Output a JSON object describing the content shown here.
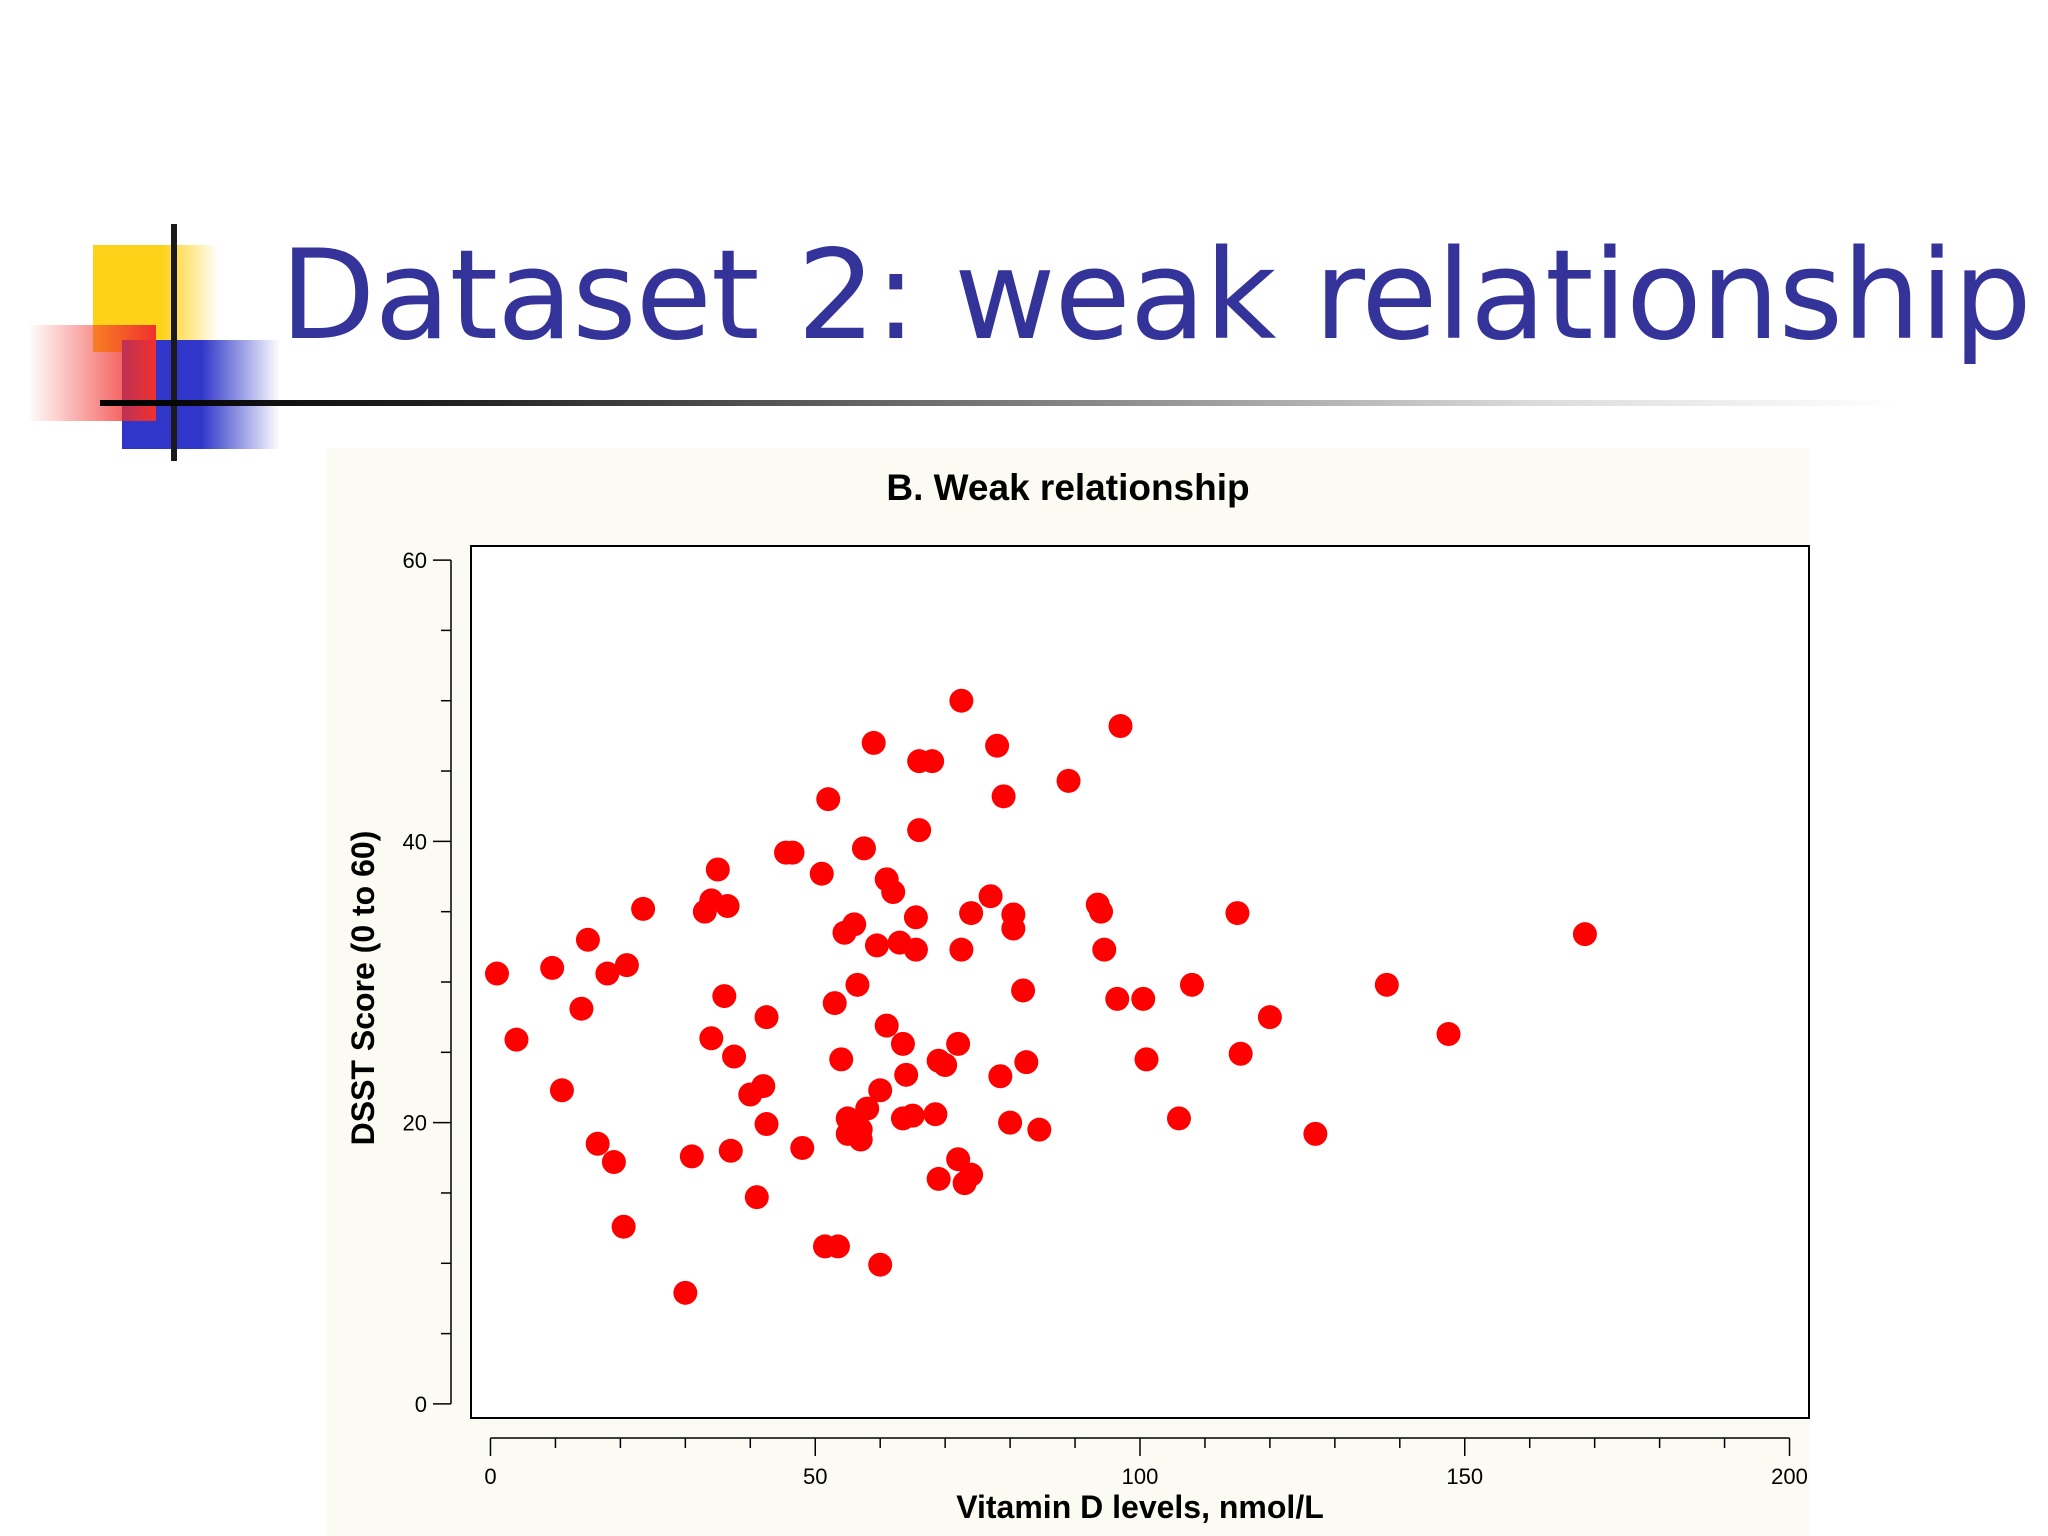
{
  "slide": {
    "title": "Dataset 2: weak relationship",
    "title_color": "#333399",
    "accent_colors": {
      "yellow": "#ffd21a",
      "blue": "#2f36c9",
      "red": "#f0302c"
    }
  },
  "chart_data": {
    "type": "scatter",
    "title": "B. Weak relationship",
    "xlabel": "Vitamin D levels, nmol/L",
    "ylabel": "DSST Score (0 to 60)",
    "xlim": [
      -3,
      203
    ],
    "ylim": [
      -1,
      61
    ],
    "xticks": [
      0,
      50,
      100,
      150,
      200
    ],
    "xminor_step": 10,
    "yticks": [
      0,
      20,
      40,
      60
    ],
    "yminor_step": 5,
    "grid": false,
    "marker_color": "#ff0000",
    "points": [
      [
        1,
        30.6
      ],
      [
        4,
        25.9
      ],
      [
        9.5,
        31
      ],
      [
        11,
        22.3
      ],
      [
        14,
        28.1
      ],
      [
        15,
        33
      ],
      [
        16.5,
        18.5
      ],
      [
        18,
        30.6
      ],
      [
        19,
        17.2
      ],
      [
        20.5,
        12.6
      ],
      [
        21,
        31.2
      ],
      [
        23.5,
        35.2
      ],
      [
        30,
        7.9
      ],
      [
        31,
        17.6
      ],
      [
        33,
        35
      ],
      [
        34,
        35.8
      ],
      [
        34,
        26
      ],
      [
        35,
        38
      ],
      [
        36,
        29
      ],
      [
        36.5,
        35.4
      ],
      [
        37,
        18
      ],
      [
        37.5,
        24.7
      ],
      [
        40,
        22
      ],
      [
        41,
        14.7
      ],
      [
        42,
        22.6
      ],
      [
        42.5,
        19.9
      ],
      [
        42.5,
        27.5
      ],
      [
        45.5,
        39.2
      ],
      [
        46.5,
        39.2
      ],
      [
        48,
        18.2
      ],
      [
        51,
        37.7
      ],
      [
        51.5,
        11.2
      ],
      [
        52,
        43
      ],
      [
        53,
        28.5
      ],
      [
        53.5,
        11.2
      ],
      [
        54,
        24.5
      ],
      [
        54.5,
        33.5
      ],
      [
        55,
        20.3
      ],
      [
        55,
        19.2
      ],
      [
        56,
        34.1
      ],
      [
        56.5,
        29.8
      ],
      [
        57,
        19.5
      ],
      [
        57,
        18.8
      ],
      [
        57.5,
        39.5
      ],
      [
        58,
        21
      ],
      [
        59,
        47
      ],
      [
        59.5,
        32.6
      ],
      [
        60,
        22.3
      ],
      [
        60,
        9.9
      ],
      [
        61,
        37.3
      ],
      [
        61,
        26.9
      ],
      [
        62,
        36.4
      ],
      [
        63,
        32.8
      ],
      [
        63.5,
        25.6
      ],
      [
        63.5,
        20.3
      ],
      [
        64,
        23.4
      ],
      [
        65,
        20.5
      ],
      [
        65.5,
        34.6
      ],
      [
        65.5,
        32.3
      ],
      [
        66,
        40.8
      ],
      [
        66,
        45.7
      ],
      [
        68,
        45.7
      ],
      [
        68.5,
        20.6
      ],
      [
        69,
        16
      ],
      [
        69,
        24.4
      ],
      [
        70,
        24.1
      ],
      [
        72,
        25.6
      ],
      [
        72,
        17.4
      ],
      [
        72.5,
        32.3
      ],
      [
        72.5,
        50
      ],
      [
        73,
        15.7
      ],
      [
        74,
        16.3
      ],
      [
        74,
        34.9
      ],
      [
        77,
        36.1
      ],
      [
        78,
        46.8
      ],
      [
        78.5,
        23.3
      ],
      [
        79,
        43.2
      ],
      [
        80,
        20
      ],
      [
        80.5,
        33.8
      ],
      [
        80.5,
        34.8
      ],
      [
        82,
        29.4
      ],
      [
        82.5,
        24.3
      ],
      [
        84.5,
        19.5
      ],
      [
        89,
        44.3
      ],
      [
        93.5,
        35.5
      ],
      [
        94,
        35
      ],
      [
        94.5,
        32.3
      ],
      [
        96.5,
        28.8
      ],
      [
        97,
        48.2
      ],
      [
        100.5,
        28.8
      ],
      [
        101,
        24.5
      ],
      [
        106,
        20.3
      ],
      [
        108,
        29.8
      ],
      [
        115,
        34.9
      ],
      [
        115.5,
        24.9
      ],
      [
        120,
        27.5
      ],
      [
        127,
        19.2
      ],
      [
        138,
        29.8
      ],
      [
        147.5,
        26.3
      ],
      [
        168.5,
        33.4
      ]
    ]
  }
}
